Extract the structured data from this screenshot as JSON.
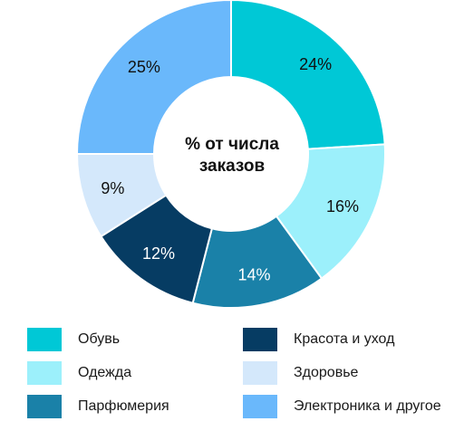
{
  "chart_data": {
    "type": "pie",
    "title": "% от числа заказов",
    "categories": [
      "Обувь",
      "Одежда",
      "Парфюмерия",
      "Красота и уход",
      "Здоровье",
      "Электроника и другое"
    ],
    "values": [
      24,
      16,
      14,
      12,
      9,
      25
    ],
    "value_labels": [
      "24%",
      "16%",
      "14%",
      "12%",
      "9%",
      "25%"
    ],
    "colors": [
      "#00c8d6",
      "#9cf0fb",
      "#1a81a8",
      "#063c63",
      "#d4e8fb",
      "#6ab8fb"
    ],
    "legend_position": "bottom"
  }
}
